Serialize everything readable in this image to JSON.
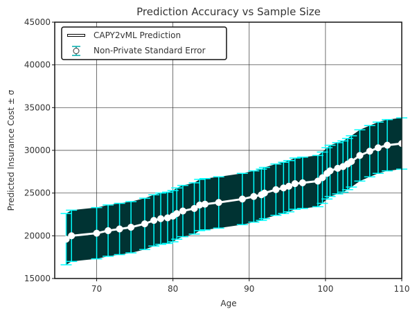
{
  "chart_data": {
    "type": "line",
    "title": "Prediction Accuracy vs Sample Size",
    "xlabel": "Age",
    "ylabel": "Predicted Insurance Cost ± σ",
    "xlim": [
      64.5,
      110
    ],
    "ylim": [
      15000,
      45000
    ],
    "xticks": [
      70,
      80,
      90,
      100,
      110
    ],
    "yticks": [
      15000,
      20000,
      25000,
      30000,
      35000,
      40000,
      45000
    ],
    "grid": true,
    "legend_position": "top-left",
    "colors": {
      "band_fill": "#003333",
      "error_bar": "#00ffff",
      "line": "#ffffff",
      "marker": "#ffffff",
      "grid": "#333333"
    },
    "series": [
      {
        "name": "CAPY2vML Prediction",
        "kind": "line",
        "x": [
          66,
          66.7,
          70,
          71.5,
          73,
          74.5,
          76.3,
          77.5,
          78.4,
          79.3,
          80,
          80.5,
          81.3,
          82.8,
          83.5,
          84.2,
          86,
          89.1,
          90.6,
          91.6,
          92,
          93.5,
          94.5,
          95.2,
          96,
          97,
          99,
          99.6,
          100.2,
          100.6,
          101.6,
          102.3,
          102.9,
          103.4,
          104.5,
          105.8,
          106.9,
          108.1,
          110
        ],
        "y": [
          19600,
          20000,
          20300,
          20600,
          20800,
          21000,
          21400,
          21800,
          22000,
          22100,
          22300,
          22600,
          22900,
          23200,
          23600,
          23700,
          23900,
          24300,
          24600,
          24800,
          25000,
          25400,
          25600,
          25800,
          26100,
          26200,
          26400,
          26800,
          27300,
          27600,
          27900,
          28100,
          28400,
          28700,
          29400,
          29900,
          30300,
          30600,
          30800
        ]
      },
      {
        "name": "Non-Private Standard Error",
        "kind": "errorbar",
        "sigma": 3000
      }
    ]
  }
}
